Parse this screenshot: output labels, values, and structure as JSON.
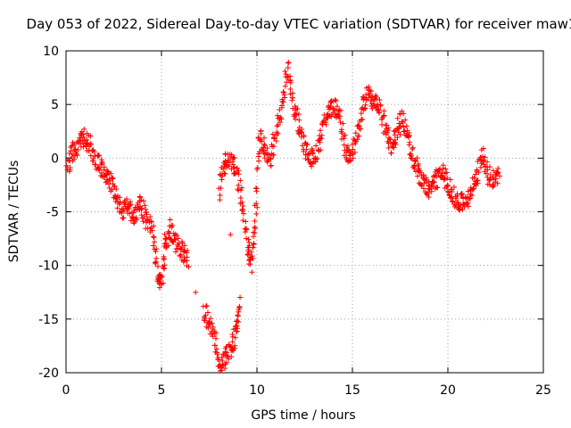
{
  "chart_data": {
    "type": "scatter",
    "title": "Day 053 of 2022, Sidereal Day-to-day VTEC variation (SDTVAR) for receiver maw1",
    "xlabel": "GPS time / hours",
    "ylabel": "SDTVAR / TECUs",
    "xlim": [
      0,
      25
    ],
    "ylim": [
      -20,
      10
    ],
    "x_ticks": [
      0,
      5,
      10,
      15,
      20,
      25
    ],
    "y_ticks": [
      -20,
      -15,
      -10,
      -5,
      0,
      5,
      10
    ],
    "grid": true,
    "marker": "+",
    "series": [
      {
        "name": "SDTVAR",
        "color": "#ff0000",
        "shape": [
          [
            0.0,
            -1.0
          ],
          [
            0.3,
            0.5
          ],
          [
            0.6,
            1.0
          ],
          [
            0.9,
            1.8
          ],
          [
            1.2,
            1.5
          ],
          [
            1.5,
            0.0
          ],
          [
            1.8,
            -0.8
          ],
          [
            2.1,
            -1.5
          ],
          [
            2.4,
            -2.5
          ],
          [
            2.7,
            -4.0
          ],
          [
            3.0,
            -5.0
          ],
          [
            3.3,
            -4.5
          ],
          [
            3.6,
            -5.5
          ],
          [
            3.9,
            -4.0
          ],
          [
            4.2,
            -5.8
          ],
          [
            4.5,
            -6.5
          ],
          [
            4.8,
            -10.5
          ],
          [
            5.0,
            -11.5
          ],
          [
            5.2,
            -8.0
          ],
          [
            5.5,
            -6.5
          ],
          [
            5.8,
            -8.0
          ],
          [
            6.1,
            -8.8
          ],
          [
            6.4,
            -9.8
          ],
          [
            7.2,
            -14.0
          ],
          [
            7.5,
            -15.5
          ],
          [
            7.8,
            -17.0
          ],
          [
            8.1,
            -19.5
          ],
          [
            8.4,
            -18.5
          ],
          [
            8.7,
            -18.0
          ],
          [
            8.9,
            -16.0
          ],
          [
            9.1,
            -13.0
          ],
          [
            8.0,
            -3.0
          ],
          [
            8.3,
            -0.5
          ],
          [
            8.6,
            0.0
          ],
          [
            8.9,
            -1.0
          ],
          [
            9.2,
            -4.0
          ],
          [
            9.5,
            -8.0
          ],
          [
            9.7,
            -10.0
          ],
          [
            9.9,
            -6.0
          ],
          [
            10.1,
            2.0
          ],
          [
            10.4,
            1.0
          ],
          [
            10.7,
            -0.5
          ],
          [
            11.0,
            2.5
          ],
          [
            11.3,
            5.0
          ],
          [
            11.6,
            8.5
          ],
          [
            11.9,
            5.0
          ],
          [
            12.2,
            3.0
          ],
          [
            12.5,
            1.0
          ],
          [
            12.8,
            0.0
          ],
          [
            13.1,
            0.5
          ],
          [
            13.4,
            2.5
          ],
          [
            13.7,
            4.0
          ],
          [
            14.0,
            5.0
          ],
          [
            14.3,
            4.0
          ],
          [
            14.6,
            1.0
          ],
          [
            14.9,
            0.0
          ],
          [
            15.2,
            1.5
          ],
          [
            15.5,
            4.5
          ],
          [
            15.8,
            6.0
          ],
          [
            16.1,
            5.5
          ],
          [
            16.4,
            5.0
          ],
          [
            16.7,
            3.0
          ],
          [
            17.0,
            1.0
          ],
          [
            17.3,
            2.0
          ],
          [
            17.6,
            4.0
          ],
          [
            17.9,
            2.0
          ],
          [
            18.2,
            0.0
          ],
          [
            18.5,
            -1.5
          ],
          [
            18.8,
            -2.5
          ],
          [
            19.1,
            -3.0
          ],
          [
            19.4,
            -2.0
          ],
          [
            19.7,
            -1.0
          ],
          [
            20.0,
            -2.5
          ],
          [
            20.3,
            -3.5
          ],
          [
            20.6,
            -4.0
          ],
          [
            20.9,
            -4.5
          ],
          [
            21.2,
            -3.0
          ],
          [
            21.5,
            -2.0
          ],
          [
            21.8,
            0.5
          ],
          [
            22.1,
            -1.5
          ],
          [
            22.4,
            -2.0
          ],
          [
            22.7,
            -1.5
          ]
        ]
      }
    ]
  }
}
